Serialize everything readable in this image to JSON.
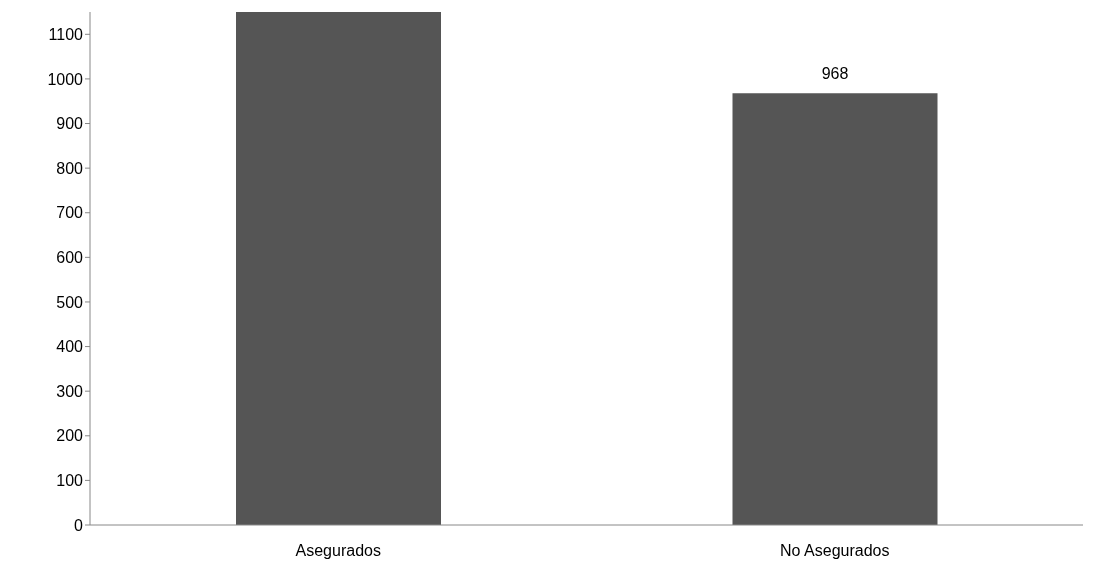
{
  "chart_data": {
    "type": "bar",
    "categories": [
      "Asegurados",
      "No Asegurados"
    ],
    "values": [
      1150,
      968
    ],
    "value_labels": [
      null,
      "968"
    ],
    "color": "#555555",
    "ylim": [
      0,
      1150
    ],
    "yticks": [
      0,
      100,
      200,
      300,
      400,
      500,
      600,
      700,
      800,
      900,
      1000,
      1100
    ],
    "grid": false,
    "legend": false
  }
}
